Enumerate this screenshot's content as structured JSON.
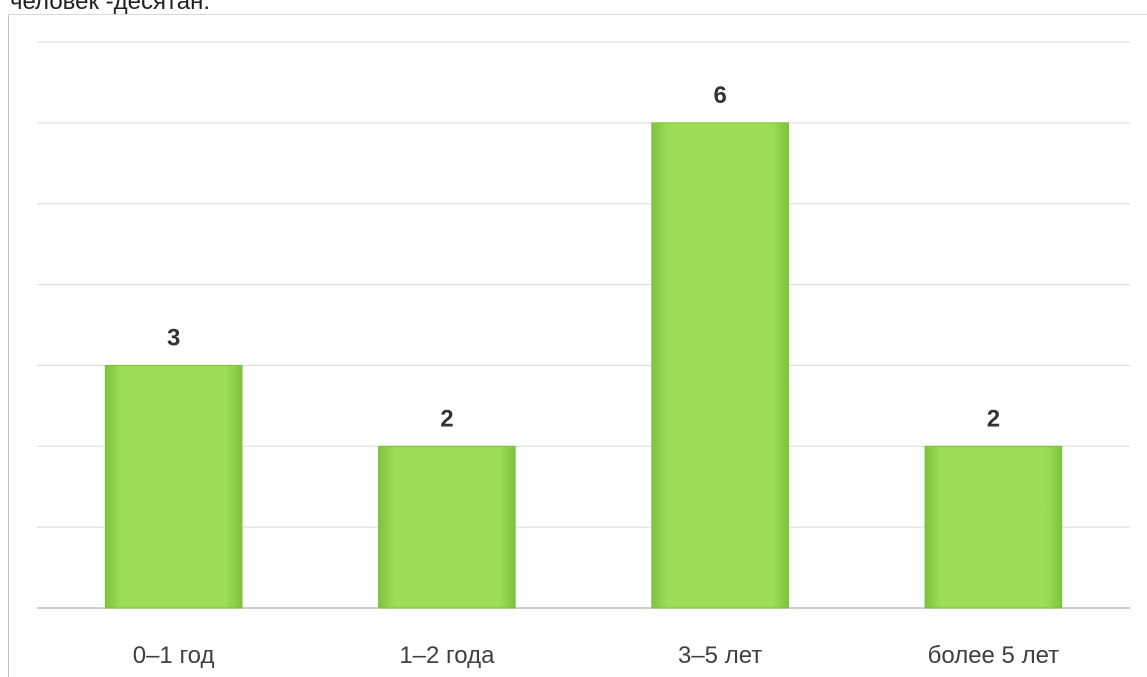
{
  "caption": {
    "text": "человек -десятан."
  },
  "chart_data": {
    "type": "bar",
    "title": "",
    "xlabel": "",
    "ylabel": "",
    "categories": [
      "0–1 год",
      "1–2 года",
      "3–5 лет",
      "более 5 лет"
    ],
    "values": [
      3,
      2,
      6,
      2
    ],
    "ylim": [
      0,
      7
    ],
    "grid": true,
    "colors": {
      "bar_fill": "#9edc55",
      "bar_edge": "#7fbf3a",
      "grid": "#d9d9d9",
      "axis": "#bfbfbf"
    }
  }
}
